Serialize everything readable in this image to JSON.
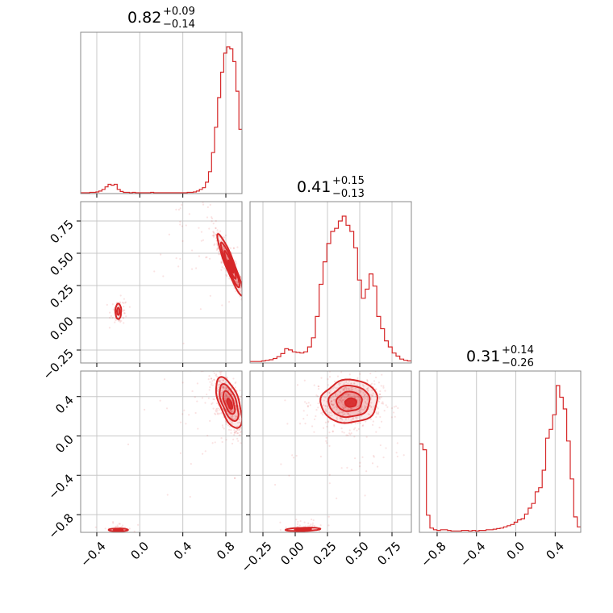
{
  "chart_data": {
    "type": "corner",
    "color": "#d62728",
    "frame_color": "#888888",
    "grid": true,
    "params": [
      {
        "title": {
          "median": "0.82",
          "plus": "+0.09",
          "minus": "−0.14"
        },
        "range": [
          -0.55,
          0.95
        ],
        "ticks": [
          -0.4,
          0.0,
          0.4,
          0.8
        ],
        "tick_labels": [
          "−0.4",
          "0.0",
          "0.4",
          "0.8"
        ]
      },
      {
        "title": {
          "median": "0.41",
          "plus": "+0.15",
          "minus": "−0.13"
        },
        "range": [
          -0.35,
          0.9
        ],
        "ticks": [
          -0.25,
          0.0,
          0.25,
          0.5,
          0.75
        ],
        "tick_labels": [
          "−0.25",
          "0.00",
          "0.25",
          "0.50",
          "0.75"
        ]
      },
      {
        "title": {
          "median": "0.31",
          "plus": "+0.14",
          "minus": "−0.26"
        },
        "range": [
          -0.98,
          0.66
        ],
        "ticks": [
          -0.8,
          -0.4,
          0.0,
          0.4
        ],
        "tick_labels": [
          "−0.8",
          "−0.4",
          "0.0",
          "0.4"
        ]
      }
    ],
    "histograms": [
      {
        "edges": [
          -0.55,
          0.95
        ],
        "counts": [
          0,
          0,
          0,
          1,
          1,
          2,
          4,
          8,
          14,
          20,
          18,
          20,
          8,
          3,
          1,
          1,
          0,
          1,
          0,
          0,
          0,
          0,
          0,
          1,
          0,
          0,
          0,
          0,
          0,
          0,
          0,
          0,
          0,
          0,
          0,
          1,
          1,
          2,
          4,
          8,
          12,
          25,
          50,
          95,
          155,
          225,
          285,
          330,
          345,
          340,
          310,
          240,
          150
        ]
      },
      {
        "edges": [
          -0.35,
          0.9
        ],
        "counts": [
          1,
          1,
          1,
          2,
          3,
          4,
          6,
          9,
          14,
          22,
          20,
          17,
          16,
          15,
          17,
          25,
          40,
          75,
          128,
          165,
          195,
          215,
          220,
          232,
          240,
          225,
          215,
          188,
          135,
          105,
          120,
          145,
          125,
          75,
          55,
          35,
          25,
          15,
          10,
          5,
          3,
          2
        ]
      },
      {
        "edges": [
          -0.98,
          0.66
        ],
        "counts": [
          150,
          140,
          28,
          6,
          3,
          2,
          3,
          3,
          2,
          1,
          1,
          1,
          2,
          2,
          1,
          2,
          1,
          2,
          2,
          3,
          3,
          4,
          5,
          6,
          8,
          10,
          12,
          16,
          20,
          22,
          30,
          40,
          48,
          68,
          75,
          105,
          160,
          175,
          200,
          250,
          230,
          210,
          155,
          90,
          25,
          8
        ]
      }
    ]
  }
}
